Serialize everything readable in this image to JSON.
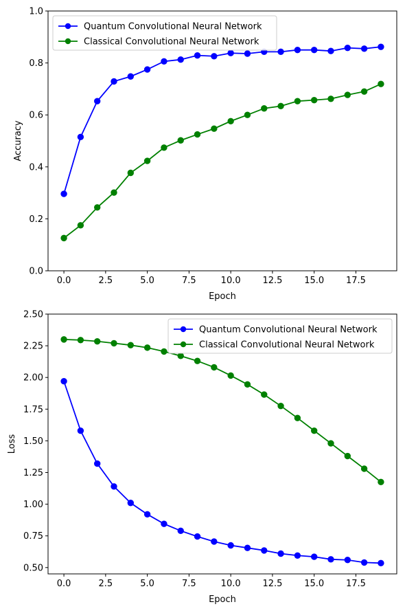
{
  "chart_data": [
    {
      "type": "line",
      "title": "",
      "xlabel": "Epoch",
      "ylabel": "Accuracy",
      "xlim": [
        -0.95,
        19.95
      ],
      "ylim": [
        0,
        1.0
      ],
      "xticks": [
        0.0,
        2.5,
        5.0,
        7.5,
        10.0,
        12.5,
        15.0,
        17.5
      ],
      "xtick_labels": [
        "0.0",
        "2.5",
        "5.0",
        "7.5",
        "10.0",
        "12.5",
        "15.0",
        "17.5"
      ],
      "yticks": [
        0.0,
        0.2,
        0.4,
        0.6,
        0.8,
        1.0
      ],
      "ytick_labels": [
        "0.0",
        "0.2",
        "0.4",
        "0.6",
        "0.8",
        "1.0"
      ],
      "grid": false,
      "legend_position": "top-left",
      "x": [
        0,
        1,
        2,
        3,
        4,
        5,
        6,
        7,
        8,
        9,
        10,
        11,
        12,
        13,
        14,
        15,
        16,
        17,
        18,
        19
      ],
      "series": [
        {
          "name": "Quantum Convolutional Neural Network",
          "color": "#0000ff",
          "values": [
            0.296,
            0.515,
            0.653,
            0.729,
            0.748,
            0.775,
            0.806,
            0.813,
            0.829,
            0.826,
            0.838,
            0.836,
            0.843,
            0.843,
            0.85,
            0.85,
            0.846,
            0.858,
            0.855,
            0.862
          ]
        },
        {
          "name": "Classical Convolutional Neural Network",
          "color": "#008000",
          "values": [
            0.126,
            0.175,
            0.244,
            0.301,
            0.377,
            0.423,
            0.474,
            0.502,
            0.525,
            0.547,
            0.576,
            0.6,
            0.625,
            0.634,
            0.653,
            0.657,
            0.662,
            0.677,
            0.69,
            0.719
          ]
        }
      ]
    },
    {
      "type": "line",
      "title": "",
      "xlabel": "Epoch",
      "ylabel": "Loss",
      "xlim": [
        -0.95,
        19.95
      ],
      "ylim": [
        0.45,
        2.5
      ],
      "xticks": [
        0.0,
        2.5,
        5.0,
        7.5,
        10.0,
        12.5,
        15.0,
        17.5
      ],
      "xtick_labels": [
        "0.0",
        "2.5",
        "5.0",
        "7.5",
        "10.0",
        "12.5",
        "15.0",
        "17.5"
      ],
      "yticks": [
        0.5,
        0.75,
        1.0,
        1.25,
        1.5,
        1.75,
        2.0,
        2.25,
        2.5
      ],
      "ytick_labels": [
        "0.50",
        "0.75",
        "1.00",
        "1.25",
        "1.50",
        "1.75",
        "2.00",
        "2.25",
        "2.50"
      ],
      "grid": false,
      "legend_position": "top-right",
      "x": [
        0,
        1,
        2,
        3,
        4,
        5,
        6,
        7,
        8,
        9,
        10,
        11,
        12,
        13,
        14,
        15,
        16,
        17,
        18,
        19
      ],
      "series": [
        {
          "name": "Quantum Convolutional Neural Network",
          "color": "#0000ff",
          "values": [
            1.97,
            1.58,
            1.32,
            1.14,
            1.01,
            0.92,
            0.845,
            0.79,
            0.745,
            0.705,
            0.675,
            0.655,
            0.635,
            0.61,
            0.595,
            0.585,
            0.565,
            0.56,
            0.54,
            0.535
          ]
        },
        {
          "name": "Classical Convolutional Neural Network",
          "color": "#008000",
          "values": [
            2.3,
            2.295,
            2.285,
            2.27,
            2.255,
            2.235,
            2.205,
            2.17,
            2.13,
            2.08,
            2.015,
            1.945,
            1.865,
            1.775,
            1.68,
            1.58,
            1.48,
            1.38,
            1.28,
            1.175
          ]
        }
      ]
    }
  ]
}
